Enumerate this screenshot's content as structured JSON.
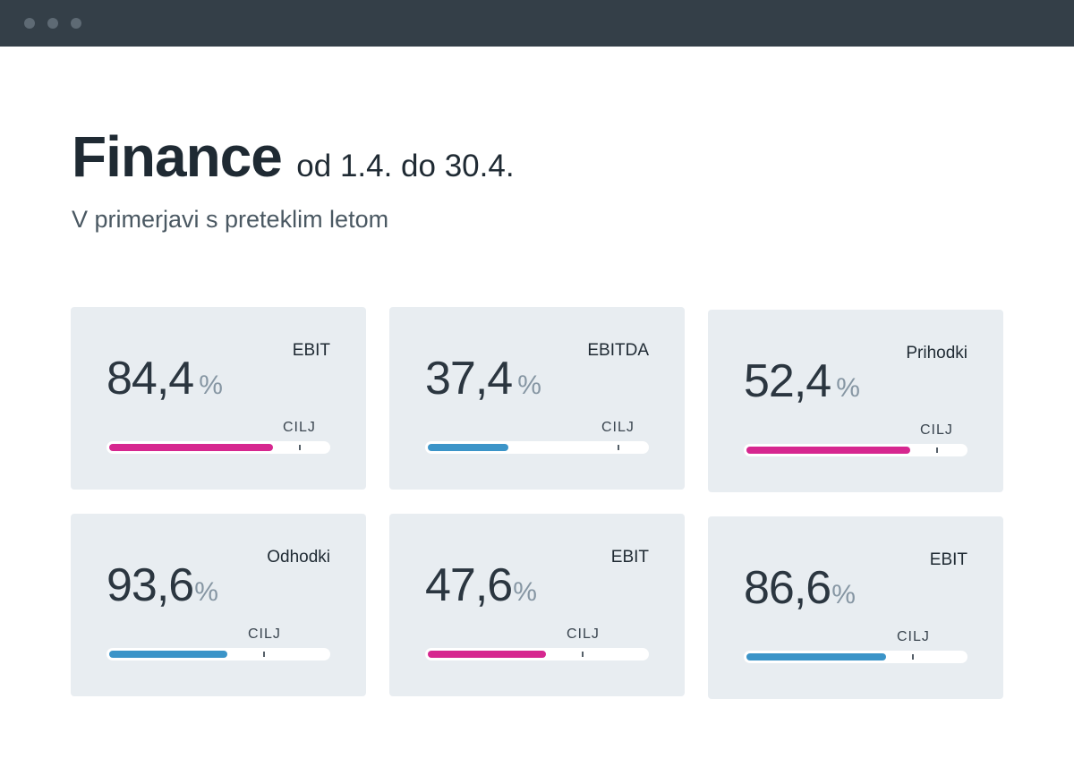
{
  "header": {
    "title": "Finance",
    "date_range": "od 1.4. do 30.4.",
    "subtitle": "V primerjavi s preteklim letom"
  },
  "colors": {
    "magenta": "#d6278f",
    "blue": "#3b94c8",
    "card_bg": "#e8edf1"
  },
  "cards": [
    {
      "label": "EBIT",
      "value": "84,4",
      "unit": "%",
      "target_label": "CILJ",
      "progress": 0.75,
      "target": 0.86,
      "color": "magenta"
    },
    {
      "label": "EBITDA",
      "value": "37,4",
      "unit": "%",
      "target_label": "CILJ",
      "progress": 0.37,
      "target": 0.86,
      "color": "blue"
    },
    {
      "label": "Prihodki",
      "value": "52,4",
      "unit": "%",
      "target_label": "CILJ",
      "progress": 0.75,
      "target": 0.86,
      "color": "magenta"
    },
    {
      "label": "Odhodki",
      "value": "93,6",
      "unit": "%",
      "target_label": "CILJ",
      "progress": 0.54,
      "target": 0.7,
      "color": "blue"
    },
    {
      "label": "EBIT",
      "value": "47,6",
      "unit": "%",
      "target_label": "CILJ",
      "progress": 0.54,
      "target": 0.7,
      "color": "magenta"
    },
    {
      "label": "EBIT",
      "value": "86,6",
      "unit": "%",
      "target_label": "CILJ",
      "progress": 0.64,
      "target": 0.75,
      "color": "blue"
    }
  ]
}
